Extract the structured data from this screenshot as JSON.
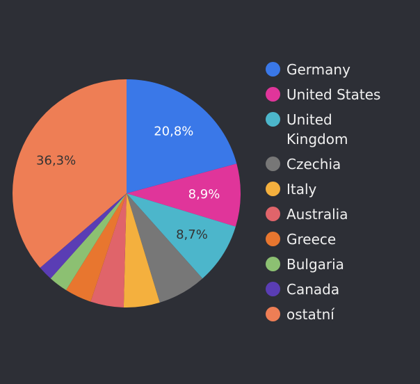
{
  "chart_data": {
    "type": "pie",
    "categories": [
      "Germany",
      "United States",
      "United Kingdom",
      "Czechia",
      "Italy",
      "Australia",
      "Greece",
      "Bulgaria",
      "Canada",
      "ostatní"
    ],
    "values": [
      20.8,
      8.9,
      8.7,
      6.9,
      5.1,
      4.7,
      3.8,
      2.7,
      2.1,
      36.3
    ],
    "value_labels": [
      "20,8%",
      "8,9%",
      "8,7%",
      null,
      null,
      null,
      null,
      null,
      null,
      "36,3%"
    ],
    "colors": [
      "#3a78e8",
      "#e0359a",
      "#4cb6cb",
      "#777777",
      "#f4b03e",
      "#e0646a",
      "#e8762f",
      "#8cc072",
      "#5a3db4",
      "#ee7e55"
    ],
    "legend": "right"
  }
}
